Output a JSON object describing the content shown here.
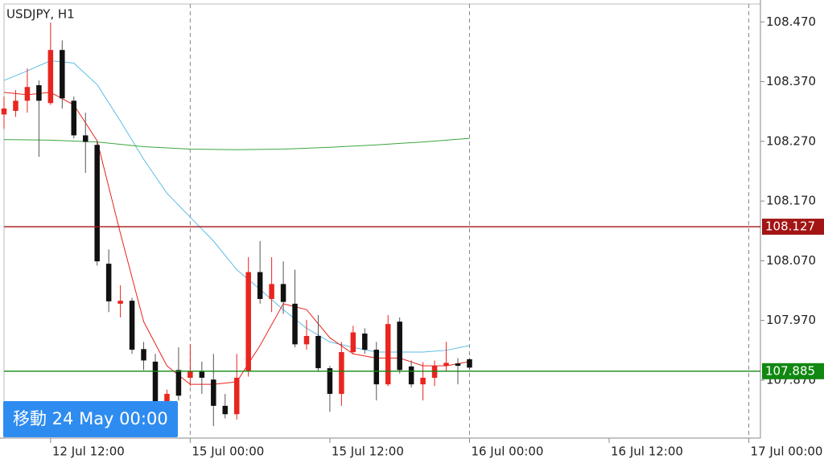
{
  "chart_data": {
    "type": "candlestick",
    "title": "USDJPY, H1",
    "xlim": [
      -16,
      49
    ],
    "xticks": [
      {
        "value": -12,
        "label": "12 Jul 12:00"
      },
      {
        "value": 0,
        "label": "15 Jul 00:00"
      },
      {
        "value": 12,
        "label": "15 Jul 12:00"
      },
      {
        "value": 24,
        "label": "16 Jul 00:00"
      },
      {
        "value": 36,
        "label": "16 Jul 12:00"
      },
      {
        "value": 48,
        "label": "17 Jul 00:00"
      }
    ],
    "ylim": [
      107.773,
      108.5
    ],
    "yticks": [
      {
        "value": 107.87,
        "label": "107.870"
      },
      {
        "value": 107.97,
        "label": "107.970"
      },
      {
        "value": 108.07,
        "label": "108.070"
      },
      {
        "value": 108.17,
        "label": "108.170"
      },
      {
        "value": 108.27,
        "label": "108.270"
      },
      {
        "value": 108.37,
        "label": "108.370"
      },
      {
        "value": 108.47,
        "label": "108.470"
      }
    ],
    "up_color": "#e8251f",
    "down_color": "#111111",
    "candles": {
      "x": [
        -16,
        -15,
        -14,
        -13,
        -12,
        -11,
        -10,
        -9,
        -8,
        -7,
        -6,
        -5,
        -4,
        -3,
        -2,
        -1,
        0,
        1,
        2,
        3,
        4,
        5,
        6,
        7,
        8,
        9,
        10,
        11,
        12,
        13,
        14,
        15,
        16,
        17,
        18,
        19,
        20,
        21,
        22,
        23,
        24
      ],
      "open": [
        108.315,
        108.321,
        108.338,
        108.364,
        108.334,
        108.423,
        108.338,
        108.28,
        108.264,
        108.065,
        107.998,
        108.003,
        107.922,
        107.901,
        107.833,
        107.887,
        107.874,
        107.884,
        107.871,
        107.827,
        107.813,
        107.885,
        108.051,
        108.006,
        108.031,
        107.998,
        107.93,
        107.944,
        107.89,
        107.847,
        107.917,
        107.948,
        107.921,
        107.863,
        107.968,
        107.893,
        107.863,
        107.874,
        107.894,
        107.898,
        107.905
      ],
      "high": [
        108.345,
        108.356,
        108.392,
        108.372,
        108.469,
        108.439,
        108.345,
        108.318,
        108.271,
        108.089,
        108.029,
        108.008,
        107.934,
        107.914,
        107.854,
        107.925,
        107.93,
        107.901,
        107.914,
        107.847,
        107.914,
        108.076,
        108.103,
        108.076,
        108.069,
        108.055,
        107.971,
        107.979,
        107.894,
        107.934,
        107.961,
        107.957,
        107.934,
        107.979,
        107.975,
        107.903,
        107.9,
        107.903,
        107.934,
        107.907,
        107.907
      ],
      "low": [
        108.291,
        108.311,
        108.318,
        108.244,
        108.331,
        108.325,
        108.275,
        108.217,
        108.062,
        107.984,
        107.975,
        107.914,
        107.887,
        107.82,
        107.82,
        107.836,
        107.86,
        107.847,
        107.793,
        107.806,
        107.804,
        107.876,
        107.998,
        107.984,
        107.981,
        107.925,
        107.921,
        107.884,
        107.817,
        107.827,
        107.914,
        107.914,
        107.836,
        107.86,
        107.881,
        107.858,
        107.836,
        107.86,
        107.884,
        107.863,
        107.887
      ],
      "close": [
        108.325,
        108.338,
        108.361,
        108.338,
        108.423,
        108.342,
        108.28,
        108.269,
        108.069,
        108.002,
        108.003,
        107.921,
        107.903,
        107.827,
        107.847,
        107.844,
        107.884,
        107.874,
        107.827,
        107.813,
        107.874,
        108.051,
        108.006,
        108.031,
        108.001,
        107.93,
        107.944,
        107.89,
        107.847,
        107.917,
        107.95,
        107.921,
        107.863,
        107.964,
        107.887,
        107.863,
        107.874,
        107.894,
        107.899,
        107.894,
        107.891
      ]
    },
    "lines": [
      {
        "color": "#5bbde6",
        "x": [
          -16,
          -14,
          -12,
          -10,
          -8,
          -6,
          -4,
          -2,
          0,
          2,
          4,
          6,
          8,
          10,
          12,
          14,
          16,
          18,
          20,
          22,
          24
        ],
        "values": [
          108.372,
          108.388,
          108.405,
          108.401,
          108.365,
          108.304,
          108.24,
          108.183,
          108.143,
          108.103,
          108.055,
          108.022,
          107.988,
          107.957,
          107.934,
          107.925,
          107.917,
          107.917,
          107.917,
          107.92,
          107.928
        ]
      },
      {
        "color": "#3aa63a",
        "x": [
          -16,
          -12,
          -8,
          -4,
          0,
          4,
          8,
          12,
          16,
          20,
          24
        ],
        "values": [
          108.273,
          108.272,
          108.269,
          108.261,
          108.257,
          108.256,
          108.257,
          108.26,
          108.264,
          108.269,
          108.275
        ]
      },
      {
        "color": "#e8251f",
        "x": [
          -16,
          -14,
          -12,
          -10,
          -8,
          -6,
          -4,
          -2,
          0,
          2,
          4,
          6,
          8,
          10,
          12,
          14,
          16,
          18,
          20,
          22,
          24
        ],
        "values": [
          108.352,
          108.348,
          108.352,
          108.331,
          108.271,
          108.116,
          107.968,
          107.894,
          107.863,
          107.863,
          107.867,
          107.928,
          107.998,
          107.988,
          107.941,
          107.914,
          107.907,
          107.907,
          107.894,
          107.894,
          107.901
        ]
      }
    ],
    "hlines": [
      {
        "value": 108.127,
        "label": "108.127",
        "color": "#a31515"
      },
      {
        "value": 107.885,
        "label": "107.885",
        "color": "#118811"
      }
    ],
    "button": "移動 24 May 00:00"
  }
}
